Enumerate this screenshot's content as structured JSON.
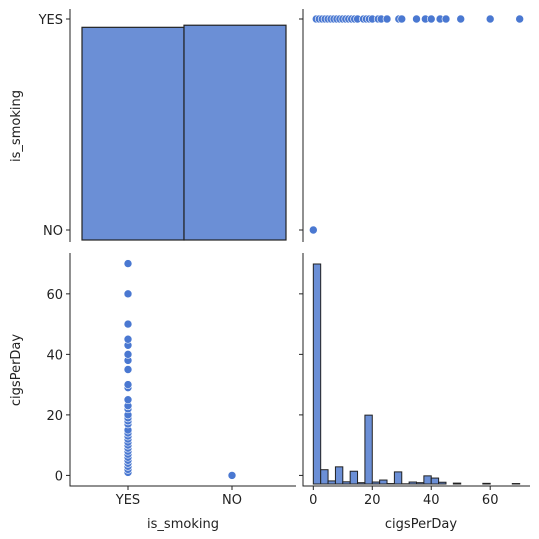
{
  "chart_data": [
    {
      "panel": "top-left",
      "type": "bar",
      "categories": [
        "YES",
        "NO"
      ],
      "values": [
        0.97,
        0.98
      ],
      "ylabel": "is_smoking",
      "yticks": [
        "YES",
        "NO"
      ],
      "color": "#6b8fd6",
      "edge_color": "#222222"
    },
    {
      "panel": "top-right",
      "type": "scatter",
      "x": [
        0,
        1,
        2,
        3,
        4,
        5,
        6,
        7,
        8,
        9,
        10,
        11,
        12,
        13,
        14,
        15,
        17,
        18,
        19,
        20,
        22,
        23,
        25,
        29,
        30,
        35,
        38,
        40,
        43,
        45,
        50,
        60,
        70
      ],
      "y": [
        "NO",
        "YES",
        "YES",
        "YES",
        "YES",
        "YES",
        "YES",
        "YES",
        "YES",
        "YES",
        "YES",
        "YES",
        "YES",
        "YES",
        "YES",
        "YES",
        "YES",
        "YES",
        "YES",
        "YES",
        "YES",
        "YES",
        "YES",
        "YES",
        "YES",
        "YES",
        "YES",
        "YES",
        "YES",
        "YES",
        "YES",
        "YES",
        "YES"
      ],
      "point_color": "#4a78d1"
    },
    {
      "panel": "bottom-left",
      "type": "scatter",
      "x": [
        "YES",
        "YES",
        "YES",
        "YES",
        "YES",
        "YES",
        "YES",
        "YES",
        "YES",
        "YES",
        "YES",
        "YES",
        "YES",
        "YES",
        "YES",
        "YES",
        "YES",
        "YES",
        "YES",
        "YES",
        "YES",
        "YES",
        "YES",
        "YES",
        "YES",
        "YES",
        "YES",
        "YES",
        "YES",
        "YES",
        "YES",
        "YES",
        "NO"
      ],
      "y": [
        1,
        2,
        3,
        4,
        5,
        6,
        7,
        8,
        9,
        10,
        11,
        12,
        13,
        14,
        15,
        17,
        18,
        19,
        20,
        22,
        23,
        25,
        29,
        30,
        35,
        38,
        40,
        43,
        45,
        50,
        60,
        70,
        0
      ],
      "xlabel": "is_smoking",
      "ylabel": "cigsPerDay",
      "xticks": [
        "YES",
        "NO"
      ],
      "yticks": [
        0,
        20,
        40,
        60
      ],
      "ylim": [
        -3.5,
        73.5
      ],
      "point_color": "#4a78d1"
    },
    {
      "panel": "bottom-right",
      "type": "bar",
      "bins": [
        {
          "x0": 0,
          "x1": 2.5,
          "count": 1000
        },
        {
          "x0": 2.5,
          "x1": 5,
          "count": 65
        },
        {
          "x0": 5,
          "x1": 7.5,
          "count": 14
        },
        {
          "x0": 7.5,
          "x1": 10,
          "count": 78
        },
        {
          "x0": 10,
          "x1": 12.5,
          "count": 10
        },
        {
          "x0": 12.5,
          "x1": 15,
          "count": 58
        },
        {
          "x0": 15,
          "x1": 17.5,
          "count": 6
        },
        {
          "x0": 17.5,
          "x1": 20,
          "count": 313
        },
        {
          "x0": 20,
          "x1": 22.5,
          "count": 9
        },
        {
          "x0": 22.5,
          "x1": 25,
          "count": 18
        },
        {
          "x0": 25,
          "x1": 27.5,
          "count": 2
        },
        {
          "x0": 27.5,
          "x1": 30,
          "count": 55
        },
        {
          "x0": 30,
          "x1": 32.5,
          "count": 1
        },
        {
          "x0": 32.5,
          "x1": 35,
          "count": 9
        },
        {
          "x0": 35,
          "x1": 37.5,
          "count": 6
        },
        {
          "x0": 37.5,
          "x1": 40,
          "count": 37
        },
        {
          "x0": 40,
          "x1": 42.5,
          "count": 27
        },
        {
          "x0": 42.5,
          "x1": 45,
          "count": 8
        },
        {
          "x0": 47.5,
          "x1": 50,
          "count": 4
        },
        {
          "x0": 57.5,
          "x1": 60,
          "count": 3
        },
        {
          "x0": 67.5,
          "x1": 70,
          "count": 2
        }
      ],
      "xlabel": "cigsPerDay",
      "xticks": [
        0,
        20,
        40,
        60
      ],
      "xlim": [
        -3.5,
        73.5
      ],
      "color": "#6b8fd6",
      "edge_color": "#222222"
    }
  ]
}
